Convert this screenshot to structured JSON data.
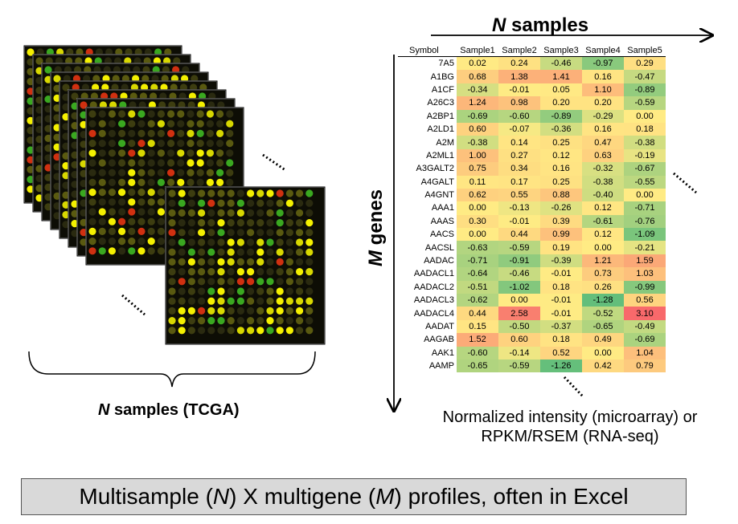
{
  "labels": {
    "top_axis_n": "N",
    "top_axis_rest": " samples",
    "side_axis_m": "M",
    "side_axis_rest": " genes",
    "tcga_n": "N",
    "tcga_rest": " samples (TCGA)",
    "normalized_line1": "Normalized intensity (microarray) or",
    "normalized_line2": "RPKM/RSEM (RNA-seq)",
    "banner_part1": "Multisample (",
    "banner_n": "N",
    "banner_part2": ") X multigene (",
    "banner_m": "M",
    "banner_part3": ") profiles, often in Excel"
  },
  "colors": {
    "low": "#63be7b",
    "mid": "#ffeb84",
    "high": "#f8696b"
  },
  "chart_data": {
    "type": "heatmap",
    "columns": [
      "Symbol",
      "Sample1",
      "Sample2",
      "Sample3",
      "Sample4",
      "Sample5"
    ],
    "rows": [
      {
        "symbol": "7A5",
        "values": [
          "0.02",
          "0.24",
          "-0.46",
          "-0.97",
          "0.29"
        ]
      },
      {
        "symbol": "A1BG",
        "values": [
          "0.68",
          "1.38",
          "1.41",
          "0.16",
          "-0.47"
        ]
      },
      {
        "symbol": "A1CF",
        "values": [
          "-0.34",
          "-0.01",
          "0.05",
          "1.10",
          "-0.89"
        ]
      },
      {
        "symbol": "A26C3",
        "values": [
          "1.24",
          "0.98",
          "0.20",
          "0.20",
          "-0.59"
        ]
      },
      {
        "symbol": "A2BP1",
        "values": [
          "-0.69",
          "-0.60",
          "-0.89",
          "-0.29",
          "0.00"
        ]
      },
      {
        "symbol": "A2LD1",
        "values": [
          "0.60",
          "-0.07",
          "-0.36",
          "0.16",
          "0.18"
        ]
      },
      {
        "symbol": "A2M",
        "values": [
          "-0.38",
          "0.14",
          "0.25",
          "0.47",
          "-0.38"
        ]
      },
      {
        "symbol": "A2ML1",
        "values": [
          "1.00",
          "0.27",
          "0.12",
          "0.63",
          "-0.19"
        ]
      },
      {
        "symbol": "A3GALT2",
        "values": [
          "0.75",
          "0.34",
          "0.16",
          "-0.32",
          "-0.67"
        ]
      },
      {
        "symbol": "A4GALT",
        "values": [
          "0.11",
          "0.17",
          "0.25",
          "-0.38",
          "-0.55"
        ]
      },
      {
        "symbol": "A4GNT",
        "values": [
          "0.62",
          "0.55",
          "0.88",
          "-0.40",
          "0.00"
        ]
      },
      {
        "symbol": "AAA1",
        "values": [
          "0.00",
          "-0.13",
          "-0.26",
          "0.12",
          "-0.71"
        ]
      },
      {
        "symbol": "AAAS",
        "values": [
          "0.30",
          "-0.01",
          "0.39",
          "-0.61",
          "-0.76"
        ]
      },
      {
        "symbol": "AACS",
        "values": [
          "0.00",
          "0.44",
          "0.99",
          "0.12",
          "-1.09"
        ]
      },
      {
        "symbol": "AACSL",
        "values": [
          "-0.63",
          "-0.59",
          "0.19",
          "0.00",
          "-0.21"
        ]
      },
      {
        "symbol": "AADAC",
        "values": [
          "-0.71",
          "-0.91",
          "-0.39",
          "1.21",
          "1.59"
        ]
      },
      {
        "symbol": "AADACL1",
        "values": [
          "-0.64",
          "-0.46",
          "-0.01",
          "0.73",
          "1.03"
        ]
      },
      {
        "symbol": "AADACL2",
        "values": [
          "-0.51",
          "-1.02",
          "0.18",
          "0.26",
          "-0.99"
        ]
      },
      {
        "symbol": "AADACL3",
        "values": [
          "-0.62",
          "0.00",
          "-0.01",
          "-1.28",
          "0.56"
        ]
      },
      {
        "symbol": "AADACL4",
        "values": [
          "0.44",
          "2.58",
          "-0.01",
          "-0.52",
          "3.10"
        ]
      },
      {
        "symbol": "AADAT",
        "values": [
          "0.15",
          "-0.50",
          "-0.37",
          "-0.65",
          "-0.49"
        ]
      },
      {
        "symbol": "AAGAB",
        "values": [
          "1.52",
          "0.60",
          "0.18",
          "0.49",
          "-0.69"
        ]
      },
      {
        "symbol": "AAK1",
        "values": [
          "-0.60",
          "-0.14",
          "0.52",
          "0.00",
          "1.04"
        ]
      },
      {
        "symbol": "AAMP",
        "values": [
          "-0.65",
          "-0.59",
          "-1.26",
          "0.42",
          "0.79"
        ]
      }
    ]
  }
}
